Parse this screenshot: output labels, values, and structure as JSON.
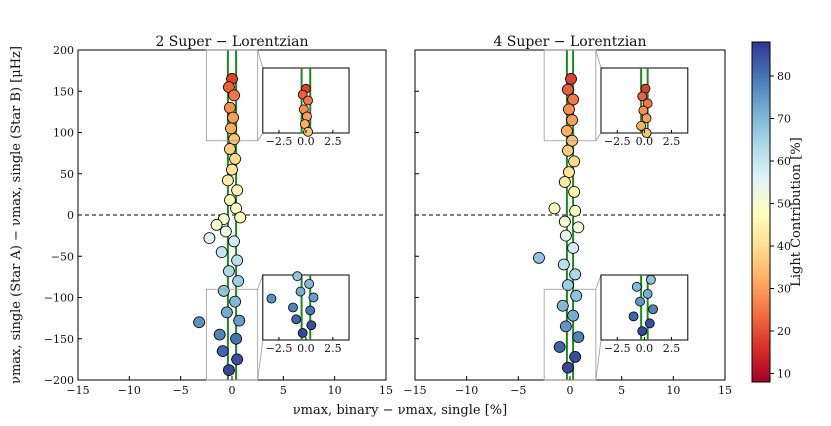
{
  "colors": {
    "colormap": [
      "#a50026",
      "#d73027",
      "#f46d43",
      "#fdae61",
      "#fee090",
      "#ffffbf",
      "#e0f3f8",
      "#abd9e9",
      "#74add1",
      "#4575b4",
      "#313695"
    ],
    "trend_line": "#1a8a1a",
    "zero_line": "#000000"
  },
  "chart_data": [
    {
      "type": "scatter",
      "title": "2 Super − Lorentzian",
      "xlabel": "νmax, binary − νmax, single [%]",
      "ylabel": "νmax, single (Star A) − νmax, single (Star B) [μHz]",
      "xlim": [
        -15,
        15
      ],
      "ylim": [
        -200,
        200
      ],
      "x_ticks": [
        "−15",
        "−10",
        "−5",
        "0",
        "5",
        "10",
        "15"
      ],
      "y_ticks": [
        "−200",
        "−150",
        "−100",
        "−50",
        "0",
        "50",
        "100",
        "150",
        "200"
      ],
      "reference_line_y": 0,
      "color_encoding": "Light Contribution [%]",
      "points": [
        {
          "x": 0.0,
          "y": 165,
          "c": 18
        },
        {
          "x": -0.3,
          "y": 155,
          "c": 22
        },
        {
          "x": 0.2,
          "y": 145,
          "c": 25
        },
        {
          "x": -0.2,
          "y": 130,
          "c": 28
        },
        {
          "x": 0.1,
          "y": 118,
          "c": 30
        },
        {
          "x": -0.1,
          "y": 105,
          "c": 32
        },
        {
          "x": 0.2,
          "y": 92,
          "c": 35
        },
        {
          "x": -0.2,
          "y": 80,
          "c": 37
        },
        {
          "x": 0.3,
          "y": 68,
          "c": 39
        },
        {
          "x": 0.0,
          "y": 55,
          "c": 41
        },
        {
          "x": -0.4,
          "y": 42,
          "c": 43
        },
        {
          "x": 0.5,
          "y": 30,
          "c": 45
        },
        {
          "x": -0.2,
          "y": 18,
          "c": 47
        },
        {
          "x": 0.4,
          "y": 8,
          "c": 49
        },
        {
          "x": -0.8,
          "y": -5,
          "c": 51
        },
        {
          "x": -1.5,
          "y": -12,
          "c": 50
        },
        {
          "x": 0.8,
          "y": -3,
          "c": 48
        },
        {
          "x": -0.6,
          "y": -20,
          "c": 53
        },
        {
          "x": -2.2,
          "y": -28,
          "c": 56
        },
        {
          "x": 0.2,
          "y": -32,
          "c": 58
        },
        {
          "x": -1.0,
          "y": -45,
          "c": 60
        },
        {
          "x": 0.5,
          "y": -55,
          "c": 62
        },
        {
          "x": -0.3,
          "y": -68,
          "c": 64
        },
        {
          "x": 0.6,
          "y": -80,
          "c": 66
        },
        {
          "x": -0.8,
          "y": -92,
          "c": 68
        },
        {
          "x": 0.3,
          "y": -105,
          "c": 70
        },
        {
          "x": -0.5,
          "y": -118,
          "c": 72
        },
        {
          "x": -3.2,
          "y": -130,
          "c": 76
        },
        {
          "x": 0.7,
          "y": -128,
          "c": 74
        },
        {
          "x": -1.2,
          "y": -145,
          "c": 78
        },
        {
          "x": 0.4,
          "y": -150,
          "c": 80
        },
        {
          "x": -0.9,
          "y": -165,
          "c": 82
        },
        {
          "x": 0.5,
          "y": -175,
          "c": 85
        },
        {
          "x": -0.3,
          "y": -188,
          "c": 86
        }
      ],
      "trend_lines_x": [
        -0.4,
        0.4
      ],
      "insets": [
        {
          "position": "upper",
          "x_ticks": [
            "−2.5",
            "0.0",
            "2.5"
          ]
        },
        {
          "position": "lower",
          "x_ticks": [
            "−2.5",
            "0.0",
            "2.5"
          ]
        }
      ]
    },
    {
      "type": "scatter",
      "title": "4 Super − Lorentzian",
      "xlabel": "νmax, binary − νmax, single [%]",
      "ylabel": "",
      "xlim": [
        -15,
        15
      ],
      "ylim": [
        -200,
        200
      ],
      "x_ticks": [
        "−15",
        "−10",
        "−5",
        "0",
        "5",
        "10",
        "15"
      ],
      "y_ticks": [],
      "reference_line_y": 0,
      "color_encoding": "Light Contribution [%]",
      "points": [
        {
          "x": 0.1,
          "y": 165,
          "c": 18
        },
        {
          "x": -0.2,
          "y": 152,
          "c": 22
        },
        {
          "x": 0.3,
          "y": 140,
          "c": 25
        },
        {
          "x": -0.1,
          "y": 128,
          "c": 28
        },
        {
          "x": 0.2,
          "y": 115,
          "c": 30
        },
        {
          "x": -0.3,
          "y": 102,
          "c": 32
        },
        {
          "x": 0.2,
          "y": 90,
          "c": 35
        },
        {
          "x": -0.2,
          "y": 78,
          "c": 37
        },
        {
          "x": 0.4,
          "y": 65,
          "c": 39
        },
        {
          "x": -0.1,
          "y": 52,
          "c": 41
        },
        {
          "x": -0.5,
          "y": 40,
          "c": 43
        },
        {
          "x": 0.4,
          "y": 28,
          "c": 45
        },
        {
          "x": -1.5,
          "y": 8,
          "c": 48
        },
        {
          "x": 0.5,
          "y": 5,
          "c": 49
        },
        {
          "x": -0.5,
          "y": -8,
          "c": 51
        },
        {
          "x": 0.8,
          "y": -15,
          "c": 52
        },
        {
          "x": -0.4,
          "y": -25,
          "c": 54
        },
        {
          "x": -3.0,
          "y": -52,
          "c": 68
        },
        {
          "x": 0.3,
          "y": -40,
          "c": 58
        },
        {
          "x": -0.6,
          "y": -60,
          "c": 62
        },
        {
          "x": 0.5,
          "y": -72,
          "c": 64
        },
        {
          "x": -0.2,
          "y": -85,
          "c": 66
        },
        {
          "x": 0.6,
          "y": -98,
          "c": 68
        },
        {
          "x": -0.7,
          "y": -110,
          "c": 70
        },
        {
          "x": 0.3,
          "y": -122,
          "c": 72
        },
        {
          "x": -0.4,
          "y": -135,
          "c": 75
        },
        {
          "x": 0.8,
          "y": -148,
          "c": 78
        },
        {
          "x": -1.0,
          "y": -160,
          "c": 82
        },
        {
          "x": 0.5,
          "y": -172,
          "c": 85
        },
        {
          "x": -0.2,
          "y": -185,
          "c": 86
        }
      ],
      "trend_lines_x": [
        -0.3,
        0.3
      ],
      "insets": [
        {
          "position": "upper",
          "x_ticks": [
            "−2.5",
            "0.0",
            "2.5"
          ]
        },
        {
          "position": "lower",
          "x_ticks": [
            "−2.5",
            "0.0",
            "2.5"
          ]
        }
      ]
    }
  ],
  "colorbar": {
    "label": "Light Contribution [%]",
    "range": [
      8,
      88
    ],
    "ticks": [
      "10",
      "20",
      "30",
      "40",
      "50",
      "60",
      "70",
      "80"
    ],
    "tick_values": [
      10,
      20,
      30,
      40,
      50,
      60,
      70,
      80
    ]
  }
}
